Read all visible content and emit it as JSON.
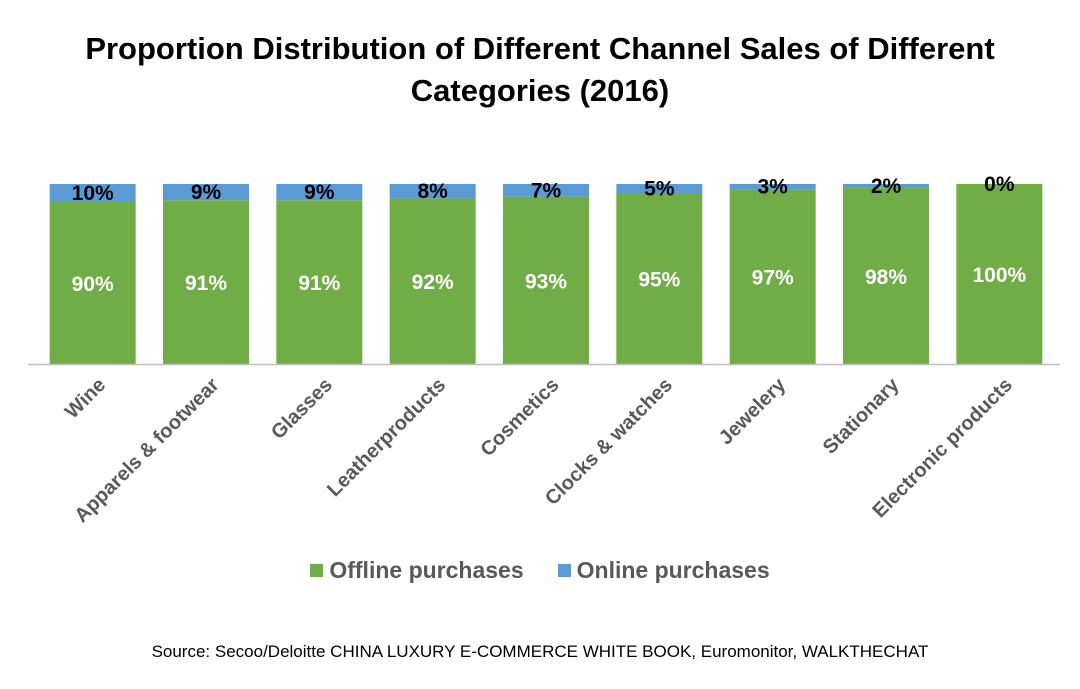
{
  "title_lines": [
    "Proportion Distribution of Different Channel Sales of Different",
    "Categories (2016)"
  ],
  "colors": {
    "offline": "#70ad47",
    "online": "#5b9bd5",
    "axis": "#bfbfbf",
    "tick_text": "#595959"
  },
  "legend": {
    "offline": "Offline purchases",
    "online": "Online purchases"
  },
  "source": "Source: Secoo/Deloitte CHINA LUXURY E-COMMERCE WHITE BOOK, Euromonitor, WALKTHECHAT",
  "chart_data": {
    "type": "bar",
    "stacked": true,
    "title": "Proportion Distribution of Different Channel Sales of Different Categories (2016)",
    "categories": [
      "Wine",
      "Apparels & footwear",
      "Glasses",
      "Leatherproducts",
      "Cosmetics",
      "Clocks & watches",
      "Jewelery",
      "Stationary",
      "Electronic products"
    ],
    "series": [
      {
        "name": "Offline purchases",
        "values": [
          90,
          91,
          91,
          92,
          93,
          95,
          97,
          98,
          100
        ],
        "labels": [
          "90%",
          "91%",
          "91%",
          "92%",
          "93%",
          "95%",
          "97%",
          "98%",
          "100%"
        ]
      },
      {
        "name": "Online purchases",
        "values": [
          10,
          9,
          9,
          8,
          7,
          5,
          3,
          2,
          0
        ],
        "labels": [
          "10%",
          "9%",
          "9%",
          "8%",
          "7%",
          "5%",
          "3%",
          "2%",
          "0%"
        ]
      }
    ],
    "ylim": [
      0,
      100
    ],
    "xlabel": "",
    "ylabel": "",
    "grid": false,
    "legend_position": "bottom"
  }
}
